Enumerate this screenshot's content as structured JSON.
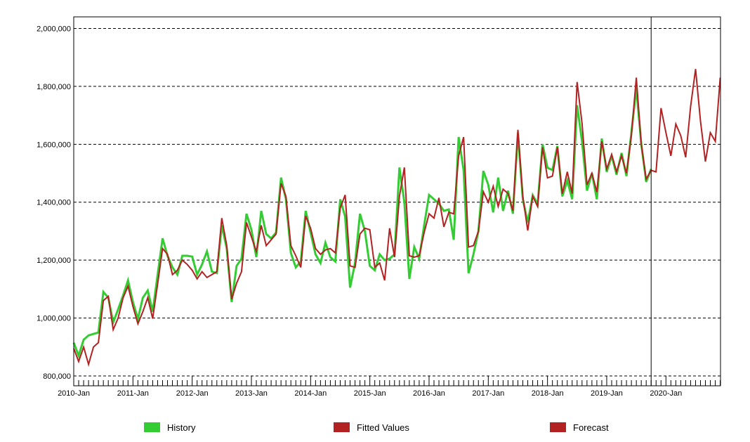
{
  "colors": {
    "background": "#ffffff",
    "axis": "#000000",
    "grid": "#000000",
    "history": "#33cc33",
    "fitted": "#b22222",
    "forecast": "#b22222"
  },
  "legend": [
    {
      "label": "History",
      "color": "#33cc33"
    },
    {
      "label": "Fitted Values",
      "color": "#b22222"
    },
    {
      "label": "Forecast",
      "color": "#b22222"
    }
  ],
  "chart_data": {
    "type": "line",
    "title": "",
    "xlabel": "",
    "ylabel": "",
    "grid": "horizontal-dashed",
    "legend_position": "bottom",
    "x_start": "2010-Jan",
    "x_end": "2020-Dec",
    "months_total": 132,
    "forecast_start_month": 117,
    "forecast_start_label": "2019-Oct",
    "ylim": [
      766000,
      2040000
    ],
    "y_ticks": [
      {
        "value": 2000000,
        "label": "2,000,000"
      },
      {
        "value": 1800000,
        "label": "1,800,000"
      },
      {
        "value": 1600000,
        "label": "1,600,000"
      },
      {
        "value": 1400000,
        "label": "1,400,000"
      },
      {
        "value": 1200000,
        "label": "1,200,000"
      },
      {
        "value": 1000000,
        "label": "1,000,000"
      },
      {
        "value": 800000,
        "label": "800,000"
      }
    ],
    "x_ticks": [
      {
        "month": 0,
        "label": "2010-Jan"
      },
      {
        "month": 12,
        "label": "2011-Jan"
      },
      {
        "month": 24,
        "label": "2012-Jan"
      },
      {
        "month": 36,
        "label": "2013-Jan"
      },
      {
        "month": 48,
        "label": "2014-Jan"
      },
      {
        "month": 60,
        "label": "2015-Jan"
      },
      {
        "month": 72,
        "label": "2016-Jan"
      },
      {
        "month": 84,
        "label": "2017-Jan"
      },
      {
        "month": 96,
        "label": "2018-Jan"
      },
      {
        "month": 108,
        "label": "2019-Jan"
      },
      {
        "month": 120,
        "label": "2020-Jan"
      }
    ],
    "series": [
      {
        "name": "History",
        "color": "#33cc33",
        "width": 3,
        "start_month": 0,
        "values": [
          915000,
          870000,
          925000,
          940000,
          945000,
          950000,
          1090000,
          1070000,
          985000,
          1030000,
          1078000,
          1130000,
          1055000,
          997000,
          1070000,
          1095000,
          1022000,
          1150000,
          1275000,
          1215000,
          1175000,
          1150000,
          1215000,
          1215000,
          1212000,
          1150000,
          1185000,
          1230000,
          1160000,
          1155000,
          1320000,
          1240000,
          1055000,
          1180000,
          1205000,
          1360000,
          1305000,
          1210000,
          1370000,
          1290000,
          1275000,
          1295000,
          1485000,
          1410000,
          1225000,
          1175000,
          1195000,
          1370000,
          1295000,
          1220000,
          1190000,
          1260000,
          1210000,
          1195000,
          1410000,
          1350000,
          1105000,
          1190000,
          1360000,
          1300000,
          1180000,
          1165000,
          1220000,
          1200000,
          1205000,
          1220000,
          1520000,
          1400000,
          1135000,
          1245000,
          1205000,
          1320000,
          1425000,
          1410000,
          1395000,
          1370000,
          1375000,
          1270000,
          1625000,
          1510000,
          1155000,
          1220000,
          1300000,
          1508000,
          1460000,
          1365000,
          1485000,
          1370000,
          1440000,
          1360000,
          1640000,
          1410000,
          1330000,
          1424000,
          1393000,
          1600000,
          1519000,
          1511000,
          1594000,
          1420000,
          1475000,
          1410000,
          1735000,
          1610000,
          1440000,
          1500000,
          1410000,
          1620000,
          1505000,
          1560000,
          1495000,
          1570000,
          1490000,
          1640000,
          1795000,
          1600000,
          1470000,
          1515000
        ]
      },
      {
        "name": "Fitted Values",
        "color": "#b22222",
        "width": 2,
        "start_month": 0,
        "values": [
          895000,
          850000,
          900000,
          840000,
          900000,
          915000,
          1060000,
          1075000,
          960000,
          1000000,
          1070000,
          1110000,
          1040000,
          980000,
          1022000,
          1070000,
          998000,
          1118000,
          1240000,
          1220000,
          1150000,
          1165000,
          1200000,
          1185000,
          1165000,
          1135000,
          1160000,
          1140000,
          1150000,
          1160000,
          1345000,
          1250000,
          1065000,
          1120000,
          1160000,
          1330000,
          1280000,
          1230000,
          1320000,
          1250000,
          1270000,
          1290000,
          1465000,
          1420000,
          1250000,
          1215000,
          1175000,
          1352000,
          1310000,
          1240000,
          1220000,
          1235000,
          1240000,
          1225000,
          1380000,
          1425000,
          1180000,
          1175000,
          1290000,
          1310000,
          1305000,
          1175000,
          1190000,
          1130000,
          1310000,
          1210000,
          1420000,
          1520000,
          1215000,
          1210000,
          1215000,
          1295000,
          1360000,
          1345000,
          1415000,
          1315000,
          1365000,
          1360000,
          1560000,
          1625000,
          1245000,
          1250000,
          1300000,
          1436000,
          1400000,
          1455000,
          1385000,
          1445000,
          1430000,
          1370000,
          1650000,
          1420000,
          1302000,
          1420000,
          1385000,
          1590000,
          1484000,
          1490000,
          1590000,
          1429000,
          1505000,
          1430000,
          1815000,
          1673000,
          1460000,
          1500000,
          1435000,
          1610000,
          1515000,
          1565000,
          1505000,
          1560000,
          1500000,
          1630000,
          1830000,
          1600000,
          1480000,
          1510000
        ]
      },
      {
        "name": "Forecast",
        "color": "#b22222",
        "width": 2,
        "start_month": 117,
        "values": [
          1510000,
          1505000,
          1725000,
          1640000,
          1560000,
          1670000,
          1630000,
          1555000,
          1730000,
          1860000,
          1680000,
          1540000,
          1640000,
          1610000,
          1830000
        ]
      }
    ]
  }
}
